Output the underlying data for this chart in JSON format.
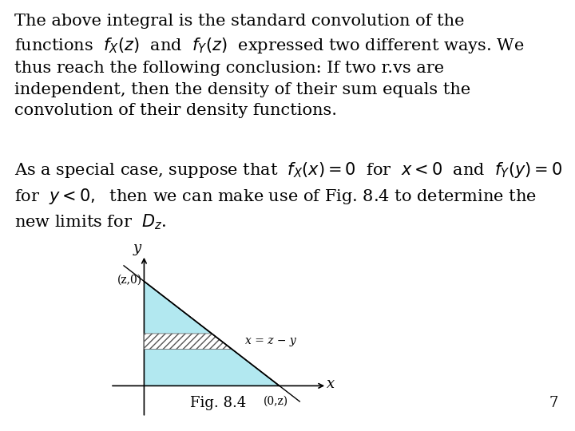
{
  "background_color": "#ffffff",
  "text_block1": "The above integral is the standard convolution of the\nfunctions ",
  "inline1": "f_X(z)",
  "text_block1b": " and ",
  "inline2": "f_Y(z)",
  "text_block1c": " expressed two different ways. We\nthus reach the following conclusion: If two r.vs are\nindependent, then the density of their sum equals the\nconvolution of their density functions.",
  "text_block2a": "As a special case, suppose that ",
  "inline3": "f_X(x) = 0",
  "text_block2b": " for ",
  "inline4": "x < 0",
  "text_block2c": " and ",
  "inline5": "f_Y(y) = 0",
  "text_block2d": "\nfor ",
  "inline6": "y < 0,",
  "text_block2e": " then we can make use of Fig. 8.4 to determine the\nnew limits for ",
  "inline7": "D_z",
  "text_block2f": ".",
  "fig_caption": "Fig. 8.4",
  "label_z0": "(z,0)",
  "label_0z": "(0,z)",
  "label_eq": "x = z − y",
  "label_x": "x",
  "label_y": "y",
  "page_number": "7",
  "fill_color": "#b2e8f0",
  "hatch_color": "#555555",
  "line_color": "#000000",
  "font_size_text": 15,
  "font_size_inline": 14
}
